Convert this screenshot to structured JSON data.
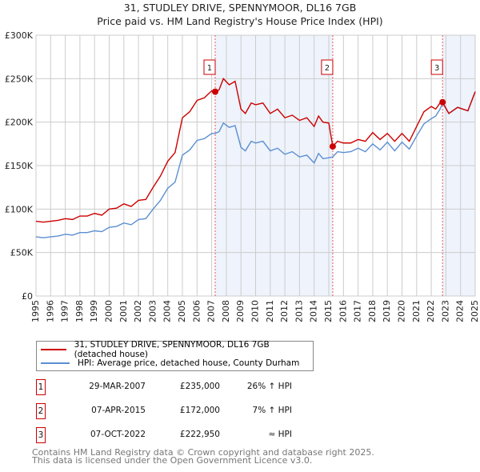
{
  "chart_data": {
    "type": "line",
    "title": "31, STUDLEY DRIVE, SPENNYMOOR, DL16 7GB",
    "subtitle": "Price paid vs. HM Land Registry's House Price Index (HPI)",
    "xlim": [
      1995,
      2025
    ],
    "ylim": [
      0,
      300000
    ],
    "x_ticks": [
      "1995",
      "1996",
      "1997",
      "1998",
      "1999",
      "2000",
      "2001",
      "2002",
      "2003",
      "2004",
      "2005",
      "2006",
      "2007",
      "2008",
      "2009",
      "2010",
      "2011",
      "2012",
      "2013",
      "2014",
      "2015",
      "2016",
      "2017",
      "2018",
      "2019",
      "2020",
      "2021",
      "2022",
      "2023",
      "2024",
      "2025"
    ],
    "y_ticks": [
      {
        "v": 0,
        "label": "£0"
      },
      {
        "v": 50000,
        "label": "£50K"
      },
      {
        "v": 100000,
        "label": "£100K"
      },
      {
        "v": 150000,
        "label": "£150K"
      },
      {
        "v": 200000,
        "label": "£200K"
      },
      {
        "v": 250000,
        "label": "£250K"
      },
      {
        "v": 300000,
        "label": "£300K"
      }
    ],
    "x": [
      1995,
      1995.5,
      1996,
      1996.5,
      1997,
      1997.5,
      1998,
      1998.5,
      1999,
      1999.5,
      2000,
      2000.5,
      2001,
      2001.5,
      2002,
      2002.5,
      2003,
      2003.5,
      2004,
      2004.5,
      2005,
      2005.5,
      2006,
      2006.5,
      2007,
      2007.24,
      2007.5,
      2007.8,
      2008.2,
      2008.6,
      2009,
      2009.3,
      2009.7,
      2010,
      2010.5,
      2011,
      2011.5,
      2012,
      2012.5,
      2013,
      2013.5,
      2014,
      2014.3,
      2014.6,
      2015,
      2015.27,
      2015.6,
      2016,
      2016.5,
      2017,
      2017.5,
      2018,
      2018.5,
      2019,
      2019.5,
      2020,
      2020.5,
      2021,
      2021.5,
      2022,
      2022.3,
      2022.6,
      2022.77,
      2023.2,
      2023.8,
      2024.5,
      2025
    ],
    "series": [
      {
        "name": "31, STUDLEY DRIVE, SPENNYMOOR, DL16 7GB (detached house)",
        "color": "#cc0000",
        "values": [
          86000,
          85000,
          86000,
          87000,
          89000,
          88000,
          92000,
          92000,
          95000,
          93000,
          100000,
          101000,
          106000,
          103000,
          110000,
          111000,
          125000,
          138000,
          155000,
          165000,
          205000,
          212000,
          225000,
          228000,
          236000,
          235000,
          237000,
          250000,
          243000,
          247000,
          215000,
          210000,
          222000,
          220000,
          222000,
          210000,
          215000,
          205000,
          208000,
          202000,
          205000,
          195000,
          207000,
          200000,
          199000,
          172000,
          178000,
          176000,
          176000,
          180000,
          178000,
          188000,
          180000,
          187000,
          178000,
          187000,
          178000,
          195000,
          212000,
          218000,
          215000,
          222000,
          222950,
          210000,
          217000,
          213000,
          235000
        ]
      },
      {
        "name": "HPI: Average price, detached house, County Durham",
        "color": "#5b8fd1",
        "values": [
          68000,
          67000,
          68000,
          69000,
          71000,
          70000,
          73000,
          73000,
          75000,
          74000,
          79000,
          80000,
          84000,
          82000,
          88000,
          89000,
          100000,
          110000,
          124000,
          131000,
          162000,
          168000,
          179000,
          181000,
          187000,
          187000,
          189000,
          199000,
          194000,
          196000,
          171000,
          167000,
          178000,
          176000,
          178000,
          167000,
          170000,
          163000,
          166000,
          160000,
          162000,
          153000,
          164000,
          158000,
          159000,
          160000,
          166000,
          165000,
          166000,
          170000,
          166000,
          175000,
          168000,
          177000,
          167000,
          177000,
          169000,
          184000,
          198000,
          204000,
          207000,
          215000,
          222000,
          210000,
          217000,
          213000,
          235000
        ]
      }
    ],
    "shaded_ranges": [
      [
        2007.24,
        2015.27
      ],
      [
        2022.77,
        2025
      ]
    ],
    "annotations": [
      {
        "label": "1",
        "x": 2007.24,
        "y": 235000,
        "date": "29-MAR-2007",
        "price": "£235,000",
        "hpi": "26% ↑ HPI"
      },
      {
        "label": "2",
        "x": 2015.27,
        "y": 172000,
        "date": "07-APR-2015",
        "price": "£172,000",
        "hpi": "7% ↑ HPI"
      },
      {
        "label": "3",
        "x": 2022.77,
        "y": 222950,
        "date": "07-OCT-2022",
        "price": "£222,950",
        "hpi": "≈ HPI"
      }
    ],
    "legend_position": "below"
  },
  "footer": [
    "Contains HM Land Registry data © Crown copyright and database right 2025.",
    "This data is licensed under the Open Government Licence v3.0."
  ]
}
